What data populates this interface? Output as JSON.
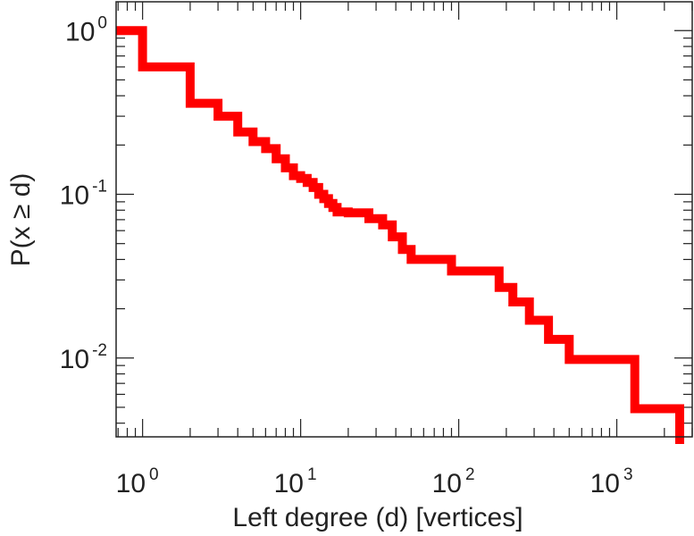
{
  "chart_data": {
    "type": "line",
    "xlabel": "Left degree (d) [vertices]",
    "ylabel": "P(x ≥ d)",
    "x_scale": "log",
    "y_scale": "log",
    "xlim": [
      0.68,
      3000
    ],
    "ylim": [
      0.0033,
      1.5
    ],
    "grid": false,
    "x_ticks": [
      {
        "value": 1,
        "base": "10",
        "exp": "0"
      },
      {
        "value": 10,
        "base": "10",
        "exp": "1"
      },
      {
        "value": 100,
        "base": "10",
        "exp": "2"
      },
      {
        "value": 1000,
        "base": "10",
        "exp": "3"
      }
    ],
    "y_ticks": [
      {
        "value": 1,
        "base": "10",
        "exp": "0"
      },
      {
        "value": 0.1,
        "base": "10",
        "exp": "-1"
      },
      {
        "value": 0.01,
        "base": "10",
        "exp": "-2"
      }
    ],
    "series": [
      {
        "color": "#ff0000",
        "step": "post",
        "x": [
          0.68,
          1,
          2,
          3,
          4,
          5,
          6,
          7,
          8,
          9,
          10,
          11,
          12,
          13,
          14,
          15,
          16,
          17,
          18,
          20,
          27,
          33,
          38,
          44,
          50,
          90,
          180,
          220,
          280,
          370,
          500,
          1300,
          2500
        ],
        "y": [
          1.0,
          0.6,
          0.36,
          0.3,
          0.24,
          0.21,
          0.19,
          0.165,
          0.145,
          0.13,
          0.125,
          0.118,
          0.11,
          0.1,
          0.094,
          0.088,
          0.083,
          0.078,
          0.078,
          0.077,
          0.071,
          0.065,
          0.055,
          0.046,
          0.04,
          0.034,
          0.027,
          0.022,
          0.017,
          0.013,
          0.0098,
          0.0049,
          0.0035
        ]
      }
    ]
  }
}
